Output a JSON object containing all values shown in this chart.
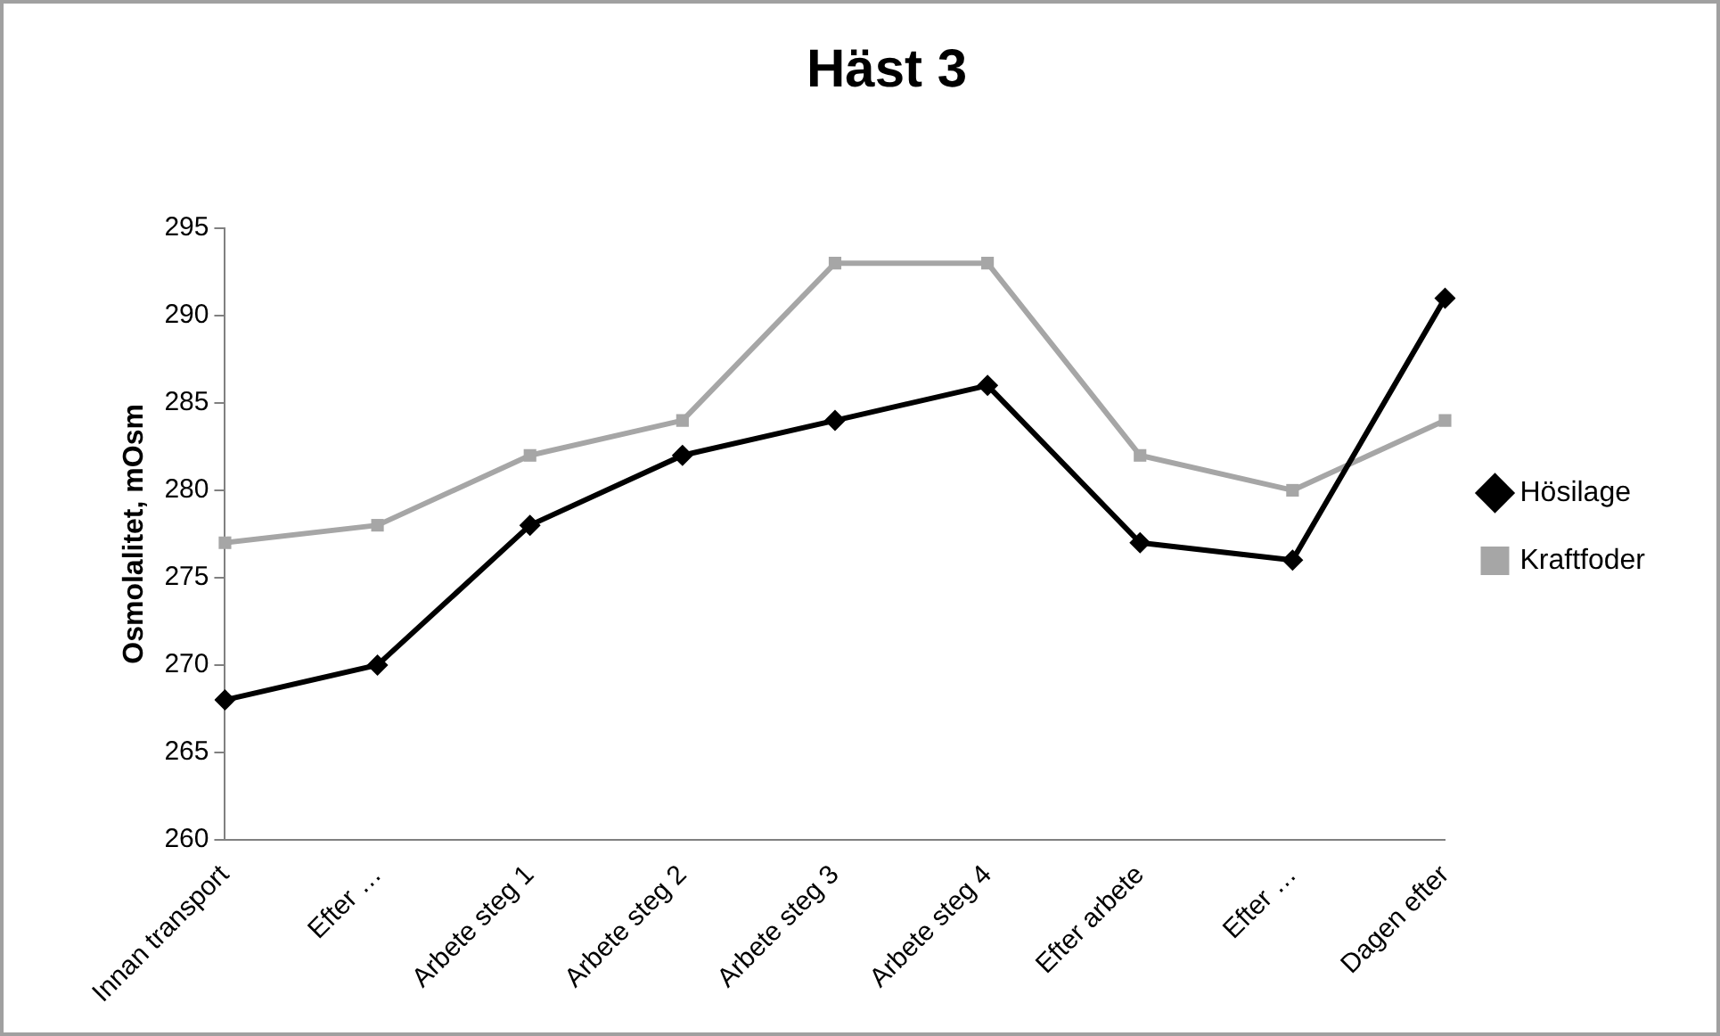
{
  "chart_data": {
    "type": "line",
    "title": "Häst 3",
    "ylabel": "Osmolalitet, mOsm",
    "categories": [
      "Innan transport",
      "Efter …",
      "Arbete steg 1",
      "Arbete steg 2",
      "Arbete steg 3",
      "Arbete steg 4",
      "Efter arbete",
      "Efter …",
      "Dagen efter"
    ],
    "series": [
      {
        "name": "Hösilage",
        "color": "#000000",
        "marker": "diamond",
        "values": [
          268,
          270,
          278,
          282,
          284,
          286,
          277,
          276,
          291
        ]
      },
      {
        "name": "Kraftfoder",
        "color": "#a6a6a6",
        "marker": "square",
        "values": [
          277,
          278,
          282,
          284,
          293,
          293,
          282,
          280,
          284
        ]
      }
    ],
    "ylim": [
      260,
      295
    ],
    "yticks": [
      260,
      265,
      270,
      275,
      280,
      285,
      290,
      295
    ],
    "grid": false,
    "legend": "right",
    "line_style": "solid"
  }
}
